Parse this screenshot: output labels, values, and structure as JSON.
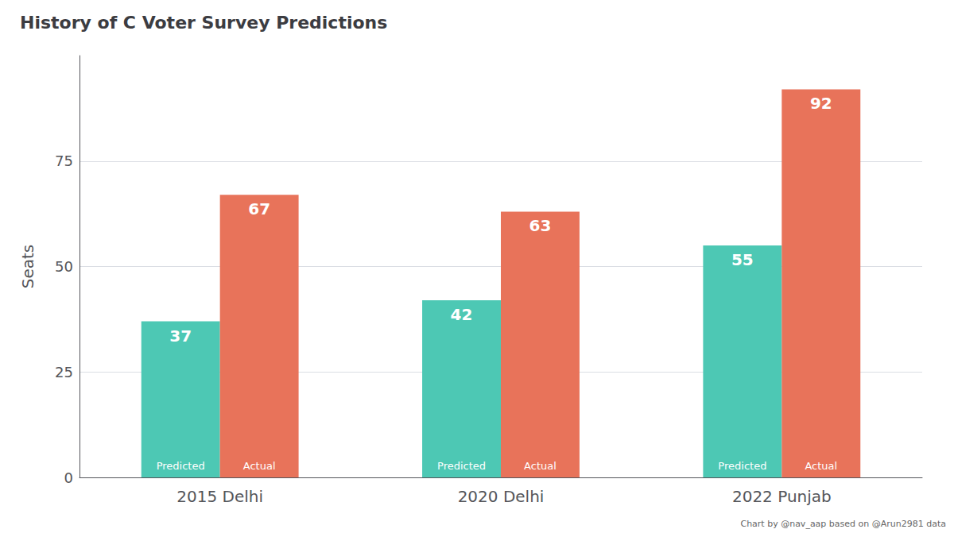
{
  "chart_data": {
    "type": "bar",
    "title": "History of C Voter Survey Predictions",
    "ylabel": "Seats",
    "categories": [
      "2015 Delhi",
      "2020 Delhi",
      "2022 Punjab"
    ],
    "series": [
      {
        "name": "Predicted",
        "color": "#4DC8B4",
        "values": [
          37,
          42,
          55
        ]
      },
      {
        "name": "Actual",
        "color": "#E8735A",
        "values": [
          67,
          63,
          92
        ]
      }
    ],
    "ylim": [
      0,
      100
    ],
    "yticks": [
      0,
      25,
      50,
      75
    ],
    "grid": true,
    "data_labels": true,
    "annotations": [
      "Chart by @nav_aap based on @Arun2981 data"
    ]
  }
}
